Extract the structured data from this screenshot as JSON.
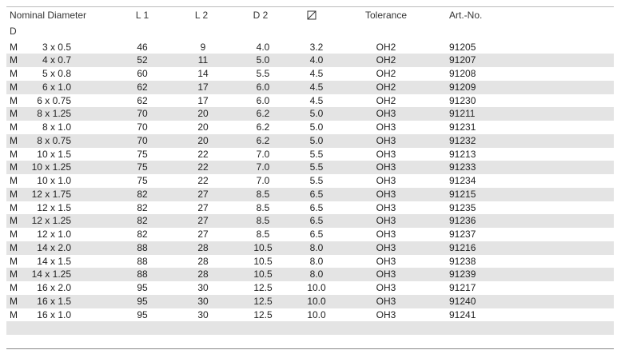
{
  "table": {
    "header": [
      "Nominal Diameter",
      "L 1",
      "L 2",
      "D 2",
      "Tolerance",
      "Art.-No."
    ],
    "subheader": "D",
    "rows": [
      [
        "M",
        "3 x 0.5",
        "46",
        "9",
        "4.0",
        "3.2",
        "OH2",
        "91205"
      ],
      [
        "M",
        "4 x 0.7",
        "52",
        "11",
        "5.0",
        "4.0",
        "OH2",
        "91207"
      ],
      [
        "M",
        "5 x 0.8",
        "60",
        "14",
        "5.5",
        "4.5",
        "OH2",
        "91208"
      ],
      [
        "M",
        "6 x 1.0",
        "62",
        "17",
        "6.0",
        "4.5",
        "OH2",
        "91209"
      ],
      [
        "M",
        "6 x 0.75",
        "62",
        "17",
        "6.0",
        "4.5",
        "OH2",
        "91230"
      ],
      [
        "M",
        "8 x 1.25",
        "70",
        "20",
        "6.2",
        "5.0",
        "OH3",
        "91211"
      ],
      [
        "M",
        "8 x 1.0",
        "70",
        "20",
        "6.2",
        "5.0",
        "OH3",
        "91231"
      ],
      [
        "M",
        "8 x 0.75",
        "70",
        "20",
        "6.2",
        "5.0",
        "OH3",
        "91232"
      ],
      [
        "M",
        "10 x 1.5",
        "75",
        "22",
        "7.0",
        "5.5",
        "OH3",
        "91213"
      ],
      [
        "M",
        "10 x 1.25",
        "75",
        "22",
        "7.0",
        "5.5",
        "OH3",
        "91233"
      ],
      [
        "M",
        "10 x 1.0",
        "75",
        "22",
        "7.0",
        "5.5",
        "OH3",
        "91234"
      ],
      [
        "M",
        "12 x 1.75",
        "82",
        "27",
        "8.5",
        "6.5",
        "OH3",
        "91215"
      ],
      [
        "M",
        "12 x 1.5",
        "82",
        "27",
        "8.5",
        "6.5",
        "OH3",
        "91235"
      ],
      [
        "M",
        "12 x 1.25",
        "82",
        "27",
        "8.5",
        "6.5",
        "OH3",
        "91236"
      ],
      [
        "M",
        "12 x 1.0",
        "82",
        "27",
        "8.5",
        "6.5",
        "OH3",
        "91237"
      ],
      [
        "M",
        "14 x 2.0",
        "88",
        "28",
        "10.5",
        "8.0",
        "OH3",
        "91216"
      ],
      [
        "M",
        "14 x 1.5",
        "88",
        "28",
        "10.5",
        "8.0",
        "OH3",
        "91238"
      ],
      [
        "M",
        "14 x 1.25",
        "88",
        "28",
        "10.5",
        "8.0",
        "OH3",
        "91239"
      ],
      [
        "M",
        "16 x 2.0",
        "95",
        "30",
        "12.5",
        "10.0",
        "OH3",
        "91217"
      ],
      [
        "M",
        "16 x 1.5",
        "95",
        "30",
        "12.5",
        "10.0",
        "OH3",
        "91240"
      ],
      [
        "M",
        "16 x 1.0",
        "95",
        "30",
        "12.5",
        "10.0",
        "OH3",
        "91241"
      ]
    ]
  }
}
